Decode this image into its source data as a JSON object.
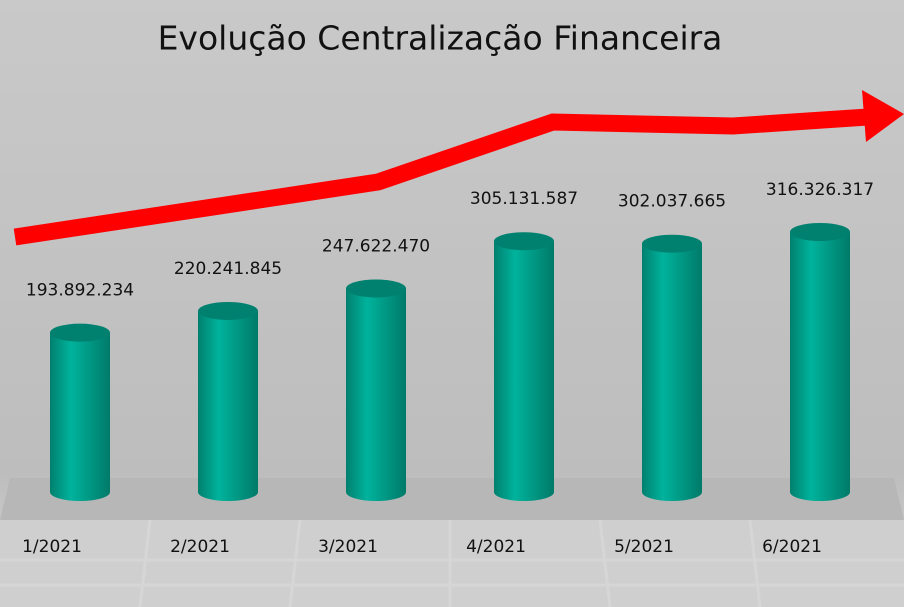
{
  "chart_data": {
    "type": "bar",
    "title": "Evolução Centralização Financeira",
    "categories": [
      "1/2021",
      "2/2021",
      "3/2021",
      "4/2021",
      "5/2021",
      "6/2021"
    ],
    "values": [
      193892234,
      220241845,
      247622470,
      305131587,
      302037665,
      316326317
    ],
    "value_labels": [
      "193.892.234",
      "220.241.845",
      "247.622.470",
      "305.131.587",
      "302.037.665",
      "316.326.317"
    ],
    "color": "#00a58f"
  }
}
